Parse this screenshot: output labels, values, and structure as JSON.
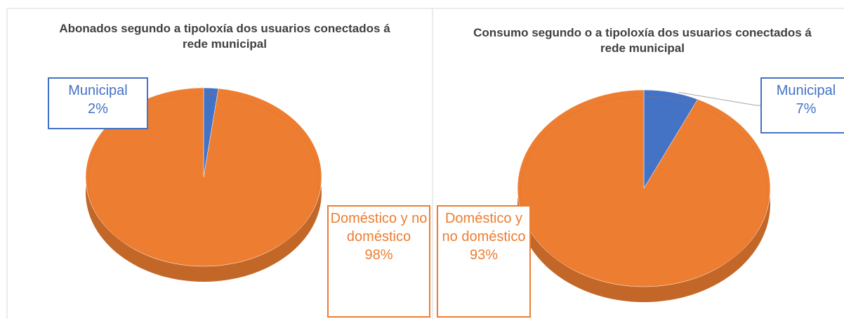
{
  "chart_data": [
    {
      "type": "pie",
      "title": "Abonados segundo a tipoloxía dos usuarios conectados á rede municipal",
      "categories": [
        "Municipal",
        "Doméstico y no doméstico"
      ],
      "values": [
        2,
        98
      ],
      "value_labels": [
        "2%",
        "98%"
      ],
      "colors": [
        "#4472c4",
        "#ed7d31"
      ]
    },
    {
      "type": "pie",
      "title": "Consumo segundo o a tipoloxía dos usuarios conectados á rede municipal",
      "categories": [
        "Municipal",
        "Doméstico y no doméstico"
      ],
      "values": [
        7,
        93
      ],
      "value_labels": [
        "7%",
        "93%"
      ],
      "colors": [
        "#4472c4",
        "#ed7d31"
      ]
    }
  ]
}
